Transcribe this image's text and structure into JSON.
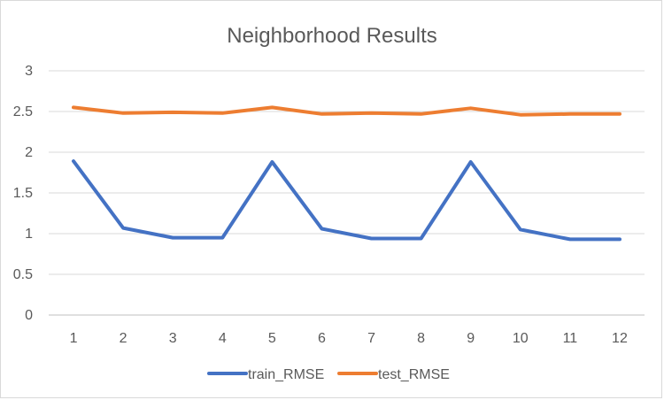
{
  "chart_data": {
    "type": "line",
    "title": "Neighborhood Results",
    "xlabel": "",
    "ylabel": "",
    "x": [
      1,
      2,
      3,
      4,
      5,
      6,
      7,
      8,
      9,
      10,
      11,
      12
    ],
    "ylim": [
      0,
      3
    ],
    "yticks": [
      0,
      0.5,
      1,
      1.5,
      2,
      2.5,
      3
    ],
    "grid": true,
    "legend": "bottom",
    "series": [
      {
        "name": "train_RMSE",
        "color": "#4472C4",
        "values": [
          1.89,
          1.07,
          0.95,
          0.95,
          1.88,
          1.06,
          0.94,
          0.94,
          1.88,
          1.05,
          0.93,
          0.93
        ]
      },
      {
        "name": "test_RMSE",
        "color": "#ED7D31",
        "values": [
          2.55,
          2.48,
          2.49,
          2.48,
          2.55,
          2.47,
          2.48,
          2.47,
          2.54,
          2.46,
          2.47,
          2.47
        ]
      }
    ]
  }
}
